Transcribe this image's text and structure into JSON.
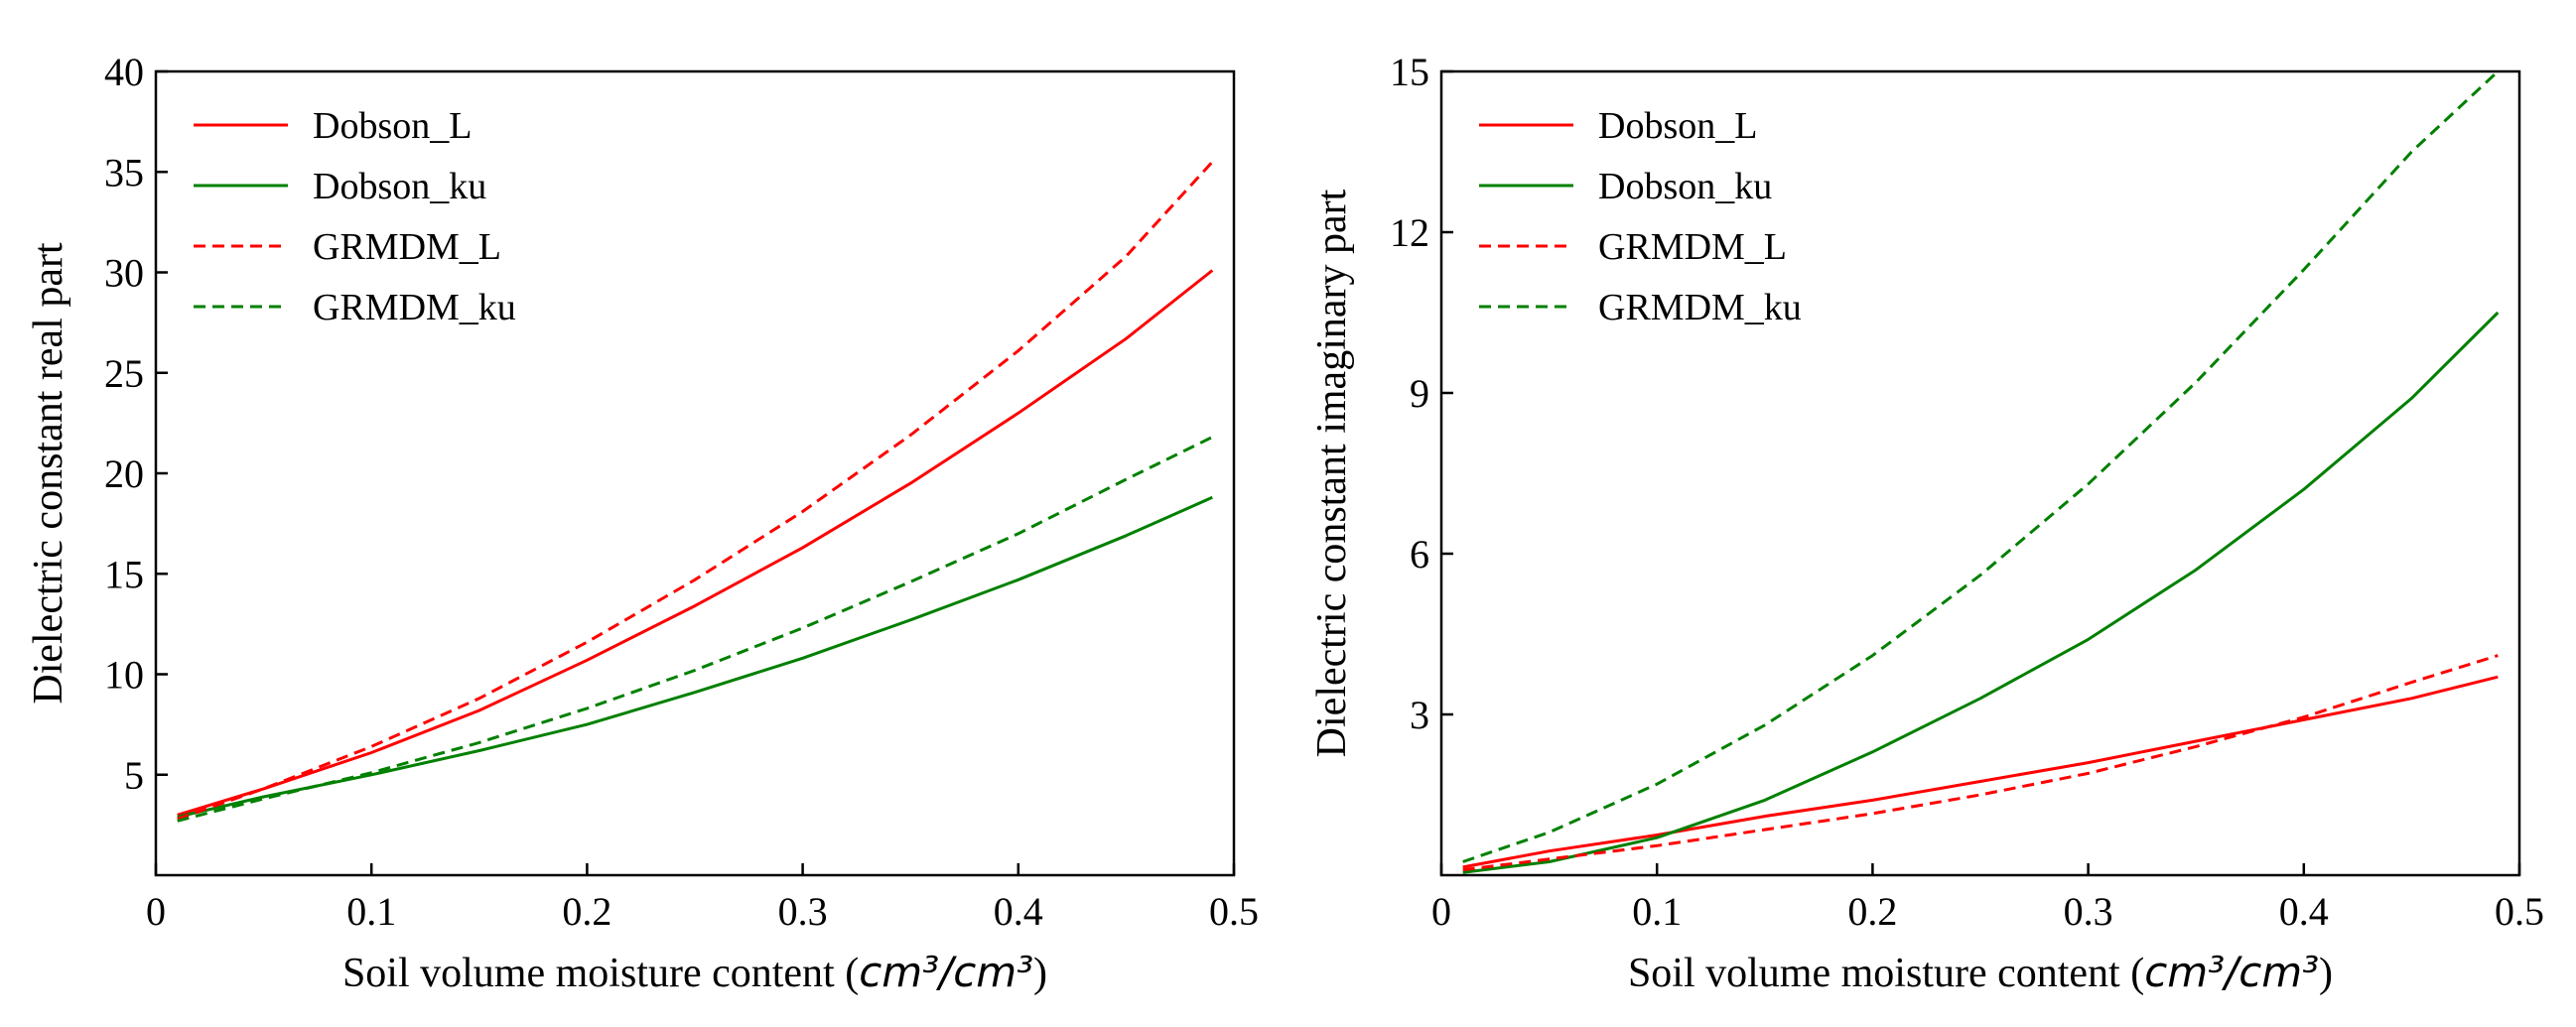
{
  "chart_data": [
    {
      "type": "line",
      "xlabel": "Soil volume moisture content (",
      "xlabel_unit": "cm³/cm³",
      "xlabel_close": ")",
      "ylabel": "Dielectric constant real part",
      "xlim": [
        0,
        0.5
      ],
      "ylim": [
        0,
        40
      ],
      "xticks": [
        0,
        0.1,
        0.2,
        0.3,
        0.4,
        0.5
      ],
      "xtick_labels": [
        "0",
        "0.1",
        "0.2",
        "0.3",
        "0.4",
        "0.5"
      ],
      "yticks": [
        5,
        10,
        15,
        20,
        25,
        30,
        35,
        40
      ],
      "ytick_labels": [
        "5",
        "10",
        "15",
        "20",
        "25",
        "30",
        "35",
        "40"
      ],
      "legend_position": "top-left",
      "x": [
        0.01,
        0.05,
        0.1,
        0.15,
        0.2,
        0.25,
        0.3,
        0.35,
        0.4,
        0.45,
        0.49
      ],
      "series": [
        {
          "name": "Dobson_L",
          "color": "#ff0000",
          "dashed": false,
          "values": [
            3.0,
            4.3,
            6.1,
            8.2,
            10.7,
            13.4,
            16.3,
            19.5,
            23.0,
            26.7,
            30.1
          ]
        },
        {
          "name": "Dobson_ku",
          "color": "#008000",
          "dashed": false,
          "values": [
            2.9,
            3.9,
            5.0,
            6.2,
            7.5,
            9.1,
            10.8,
            12.7,
            14.7,
            16.9,
            18.8
          ]
        },
        {
          "name": "GRMDM_L",
          "color": "#ff0000",
          "dashed": true,
          "values": [
            2.8,
            4.3,
            6.4,
            8.8,
            11.6,
            14.7,
            18.1,
            21.9,
            26.1,
            30.8,
            35.5
          ]
        },
        {
          "name": "GRMDM_ku",
          "color": "#008000",
          "dashed": true,
          "values": [
            2.7,
            3.8,
            5.1,
            6.6,
            8.3,
            10.2,
            12.3,
            14.6,
            17.0,
            19.7,
            21.8
          ]
        }
      ]
    },
    {
      "type": "line",
      "xlabel": "Soil volume moisture content (",
      "xlabel_unit": "cm³/cm³",
      "xlabel_close": ")",
      "ylabel": "Dielectric constant imaginary part",
      "xlim": [
        0,
        0.5
      ],
      "ylim": [
        0,
        15
      ],
      "xticks": [
        0,
        0.1,
        0.2,
        0.3,
        0.4,
        0.5
      ],
      "xtick_labels": [
        "0",
        "0.1",
        "0.2",
        "0.3",
        "0.4",
        "0.5"
      ],
      "yticks": [
        3,
        6,
        9,
        12,
        15
      ],
      "ytick_labels": [
        "3",
        "6",
        "9",
        "12",
        "15"
      ],
      "legend_position": "top-left",
      "x": [
        0.01,
        0.05,
        0.1,
        0.15,
        0.2,
        0.25,
        0.3,
        0.35,
        0.4,
        0.45,
        0.49
      ],
      "series": [
        {
          "name": "Dobson_L",
          "color": "#ff0000",
          "dashed": false,
          "values": [
            0.15,
            0.45,
            0.75,
            1.1,
            1.4,
            1.75,
            2.1,
            2.5,
            2.9,
            3.3,
            3.7
          ]
        },
        {
          "name": "Dobson_ku",
          "color": "#008000",
          "dashed": false,
          "values": [
            0.05,
            0.25,
            0.7,
            1.4,
            2.3,
            3.3,
            4.4,
            5.7,
            7.2,
            8.9,
            10.5
          ]
        },
        {
          "name": "GRMDM_L",
          "color": "#ff0000",
          "dashed": true,
          "values": [
            0.1,
            0.3,
            0.55,
            0.85,
            1.15,
            1.5,
            1.9,
            2.4,
            2.95,
            3.6,
            4.1
          ]
        },
        {
          "name": "GRMDM_ku",
          "color": "#008000",
          "dashed": true,
          "values": [
            0.25,
            0.8,
            1.7,
            2.8,
            4.1,
            5.6,
            7.3,
            9.2,
            11.3,
            13.5,
            15.0
          ]
        }
      ]
    }
  ]
}
